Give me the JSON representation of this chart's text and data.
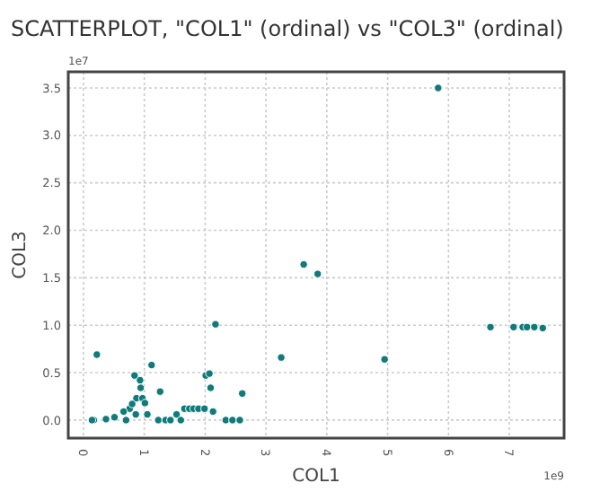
{
  "chart_data": {
    "type": "scatter",
    "title": "SCATTERPLOT, \"COL1\" (ordinal) vs \"COL3\" (ordinal)",
    "xlabel": "COL1",
    "ylabel": "COL3",
    "annotations": [
      "1e7",
      "1e9"
    ],
    "x": [
      0.22,
      0.84,
      1.12,
      2.09,
      2.01,
      2.07,
      2.17,
      2.61,
      3.25,
      3.62,
      1.26,
      0.94,
      0.87,
      0.97,
      0.76,
      0.66,
      0.8,
      0.93,
      1.01,
      0.51,
      0.37,
      0.17,
      0.14,
      0.7,
      0.86,
      1.05,
      1.23,
      1.35,
      1.43,
      1.53,
      1.6,
      1.66,
      1.74,
      1.81,
      1.89,
      1.99,
      2.13,
      2.34,
      2.45,
      2.57,
      5.83,
      3.85,
      4.95,
      6.69,
      7.07,
      7.22,
      7.29,
      7.41,
      7.55
    ],
    "values": [
      0.69,
      0.47,
      0.58,
      0.34,
      0.47,
      0.49,
      1.01,
      0.28,
      0.66,
      1.64,
      0.3,
      0.34,
      0.23,
      0.23,
      0.12,
      0.09,
      0.17,
      0.42,
      0.18,
      0.03,
      0.01,
      0,
      0,
      0,
      0.06,
      0.06,
      0,
      0,
      0,
      0.06,
      0,
      0.12,
      0.12,
      0.12,
      0.12,
      0.12,
      0.09,
      0,
      0,
      0,
      3.5,
      1.54,
      0.64,
      0.98,
      0.98,
      0.98,
      0.98,
      0.98,
      0.97
    ],
    "color": "#0e7c7b",
    "marker": "circle",
    "grid": true,
    "xlim": [
      -0.25,
      7.9
    ],
    "xticks": [
      0,
      1,
      2,
      3,
      4,
      5,
      6,
      7
    ],
    "ylim": [
      -0.19,
      3.67
    ],
    "yticks": [
      {
        "value": 0,
        "label": "0.0"
      },
      {
        "value": 0.5,
        "label": "0.5"
      },
      {
        "value": 1,
        "label": "1.0"
      },
      {
        "value": 1.5,
        "label": "1.5"
      },
      {
        "value": 2,
        "label": "2.0"
      },
      {
        "value": 2.5,
        "label": "2.5"
      },
      {
        "value": 3,
        "label": "3.0"
      },
      {
        "value": 3.5,
        "label": "3.5"
      }
    ]
  }
}
